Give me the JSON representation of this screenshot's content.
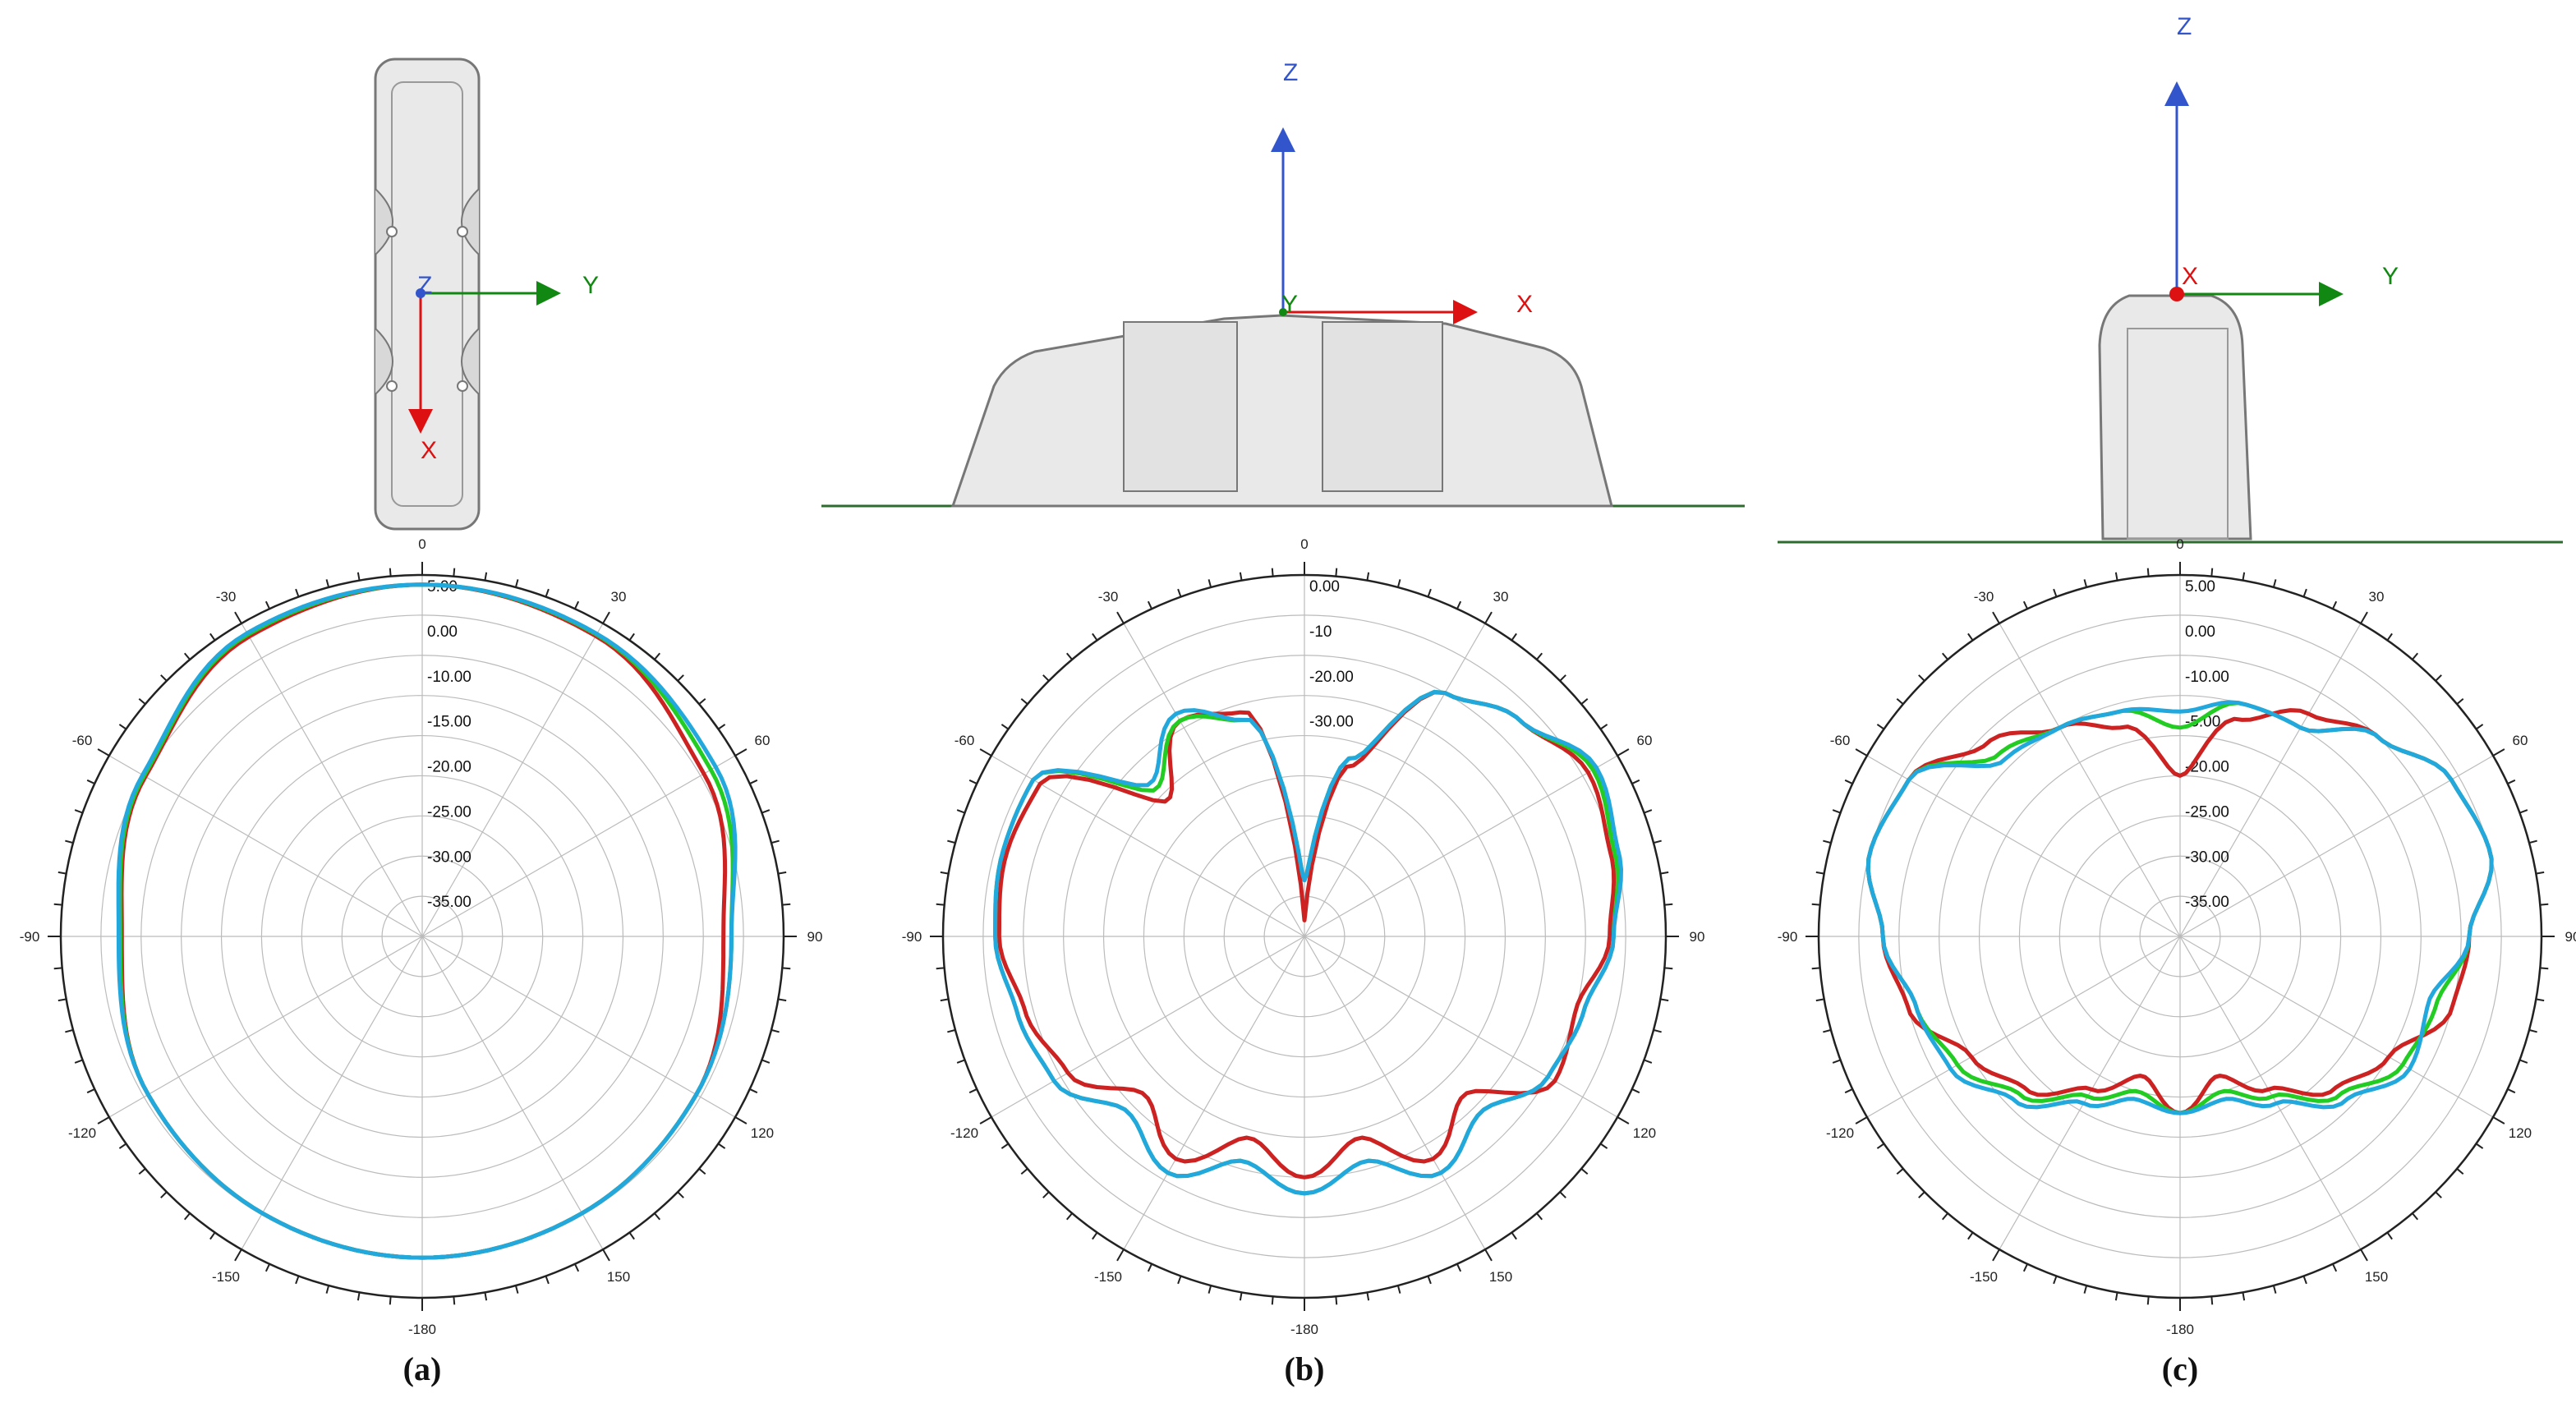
{
  "colors": {
    "series": [
      "#cc2222",
      "#22cc22",
      "#22a8dd"
    ],
    "model_fill": "#e9e9e9",
    "model_stroke": "#777777",
    "ground": "#2e6b2e",
    "axis_x": "#dd1111",
    "axis_y": "#118811",
    "axis_z": "#3355cc",
    "grid": "#bbbbbb"
  },
  "angle_labels": [
    "0",
    "30",
    "60",
    "90",
    "120",
    "150",
    "-180",
    "-150",
    "-120",
    "-90",
    "-60",
    "-30"
  ],
  "axis_letters": {
    "x": "X",
    "y": "Y",
    "z": "Z"
  },
  "panels": [
    {
      "caption": "(a)",
      "view": "top"
    },
    {
      "caption": "(b)",
      "view": "side"
    },
    {
      "caption": "(c)",
      "view": "end"
    }
  ],
  "chart_data": [
    {
      "type": "polar",
      "title": "",
      "angle_unit": "deg",
      "rlim": [
        -40,
        5
      ],
      "ring_labels": [
        "5.00",
        "0.00",
        "-10.00",
        "-15.00",
        "-20.00",
        "-25.00",
        "-30.00",
        "-35.00"
      ],
      "angles": [
        0,
        30,
        60,
        90,
        120,
        150,
        180,
        210,
        240,
        270,
        300,
        330
      ],
      "series": [
        {
          "values": [
            3.8,
            3.2,
            0.5,
            -2.5,
            -0.6,
            -0.2,
            0.0,
            -0.2,
            -0.6,
            -2.6,
            -0.2,
            3.1
          ]
        },
        {
          "values": [
            3.8,
            3.4,
            1.5,
            -1.5,
            -0.6,
            -0.2,
            0.0,
            -0.2,
            -0.6,
            -2.4,
            0.0,
            3.4
          ]
        },
        {
          "values": [
            3.8,
            3.5,
            2.2,
            -1.5,
            -0.6,
            -0.2,
            0.0,
            -0.2,
            -0.6,
            -2.2,
            0.2,
            3.6
          ]
        }
      ]
    },
    {
      "type": "polar",
      "title": "",
      "angle_unit": "deg",
      "rlim": [
        -40,
        5
      ],
      "ring_labels": [
        "0.00",
        "-10",
        "-20.00",
        "-30.00"
      ],
      "angles": [
        0,
        15,
        30,
        45,
        60,
        75,
        90,
        105,
        120,
        135,
        150,
        165,
        180,
        195,
        210,
        225,
        240,
        255,
        270,
        285,
        300,
        315,
        330,
        345
      ],
      "series": [
        {
          "values": [
            -38,
            -18,
            -5,
            -2,
            0.8,
            -0.5,
            -2,
            -5,
            -4,
            -12,
            -8,
            -14,
            -10,
            -14,
            -8,
            -12,
            -6,
            -4,
            -2,
            -1.5,
            -2,
            -16,
            -9,
            -11
          ]
        },
        {
          "values": [
            -33,
            -17,
            -5,
            -2,
            1.5,
            0,
            -1.5,
            -4,
            -5,
            -9,
            -6,
            -11,
            -8,
            -11,
            -6,
            -9,
            -4,
            -3,
            -1.5,
            -1,
            -1,
            -14,
            -9,
            -12
          ]
        },
        {
          "values": [
            -33,
            -17,
            -5,
            -2,
            2,
            0.5,
            -1.5,
            -4,
            -5,
            -9,
            -6,
            -11,
            -8,
            -11,
            -6,
            -9,
            -4,
            -3,
            -1.5,
            -1,
            -1,
            -13,
            -8,
            -12
          ]
        }
      ]
    },
    {
      "type": "polar",
      "title": "",
      "angle_unit": "deg",
      "rlim": [
        -40,
        5
      ],
      "ring_labels": [
        "5.00",
        "0.00",
        "-10.00",
        "-5.00",
        "-20.00",
        "-25.00",
        "-30.00",
        "-35.00"
      ],
      "angles": [
        0,
        15,
        30,
        45,
        60,
        75,
        90,
        105,
        120,
        135,
        150,
        165,
        180,
        195,
        210,
        225,
        240,
        255,
        270,
        285,
        300,
        315,
        330,
        345
      ],
      "series": [
        {
          "values": [
            -20,
            -12,
            -8,
            -5,
            -1,
            0,
            -4,
            -5,
            -10,
            -13,
            -18,
            -22,
            -18,
            -22,
            -18,
            -13,
            -10,
            -5,
            -3,
            0,
            -1,
            -6,
            -10,
            -13
          ]
        },
        {
          "values": [
            -14,
            -10,
            -10,
            -5,
            -1,
            0,
            -4,
            -7,
            -8,
            -12,
            -17,
            -20,
            -18,
            -20,
            -17,
            -12,
            -8,
            -6,
            -3,
            0,
            -1,
            -8,
            -10,
            -11
          ]
        },
        {
          "values": [
            -12,
            -10,
            -10,
            -5,
            -1,
            0,
            -4,
            -8,
            -7,
            -11,
            -16,
            -19,
            -18,
            -19,
            -16,
            -11,
            -7,
            -6,
            -3,
            0,
            -1,
            -9,
            -10,
            -11
          ]
        }
      ]
    }
  ]
}
